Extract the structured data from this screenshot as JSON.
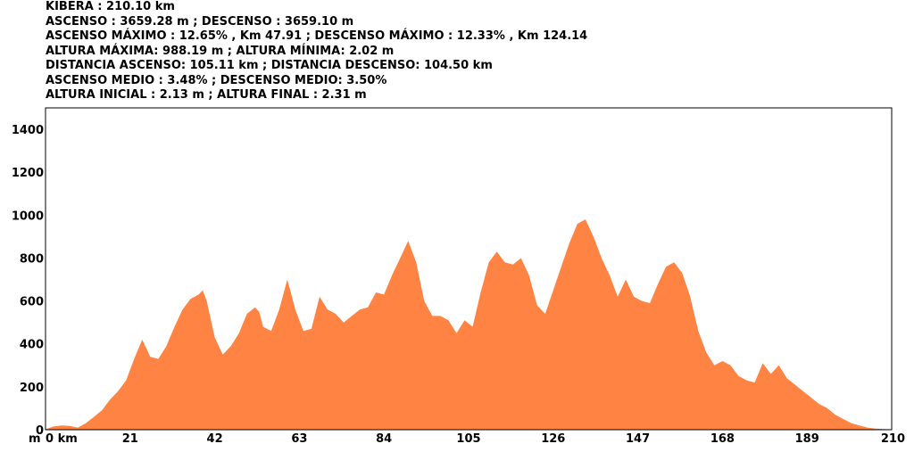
{
  "stats": [
    "KIBERA : 210.10 km",
    "ASCENSO : 3659.28 m ; DESCENSO : 3659.10 m",
    "ASCENSO MÁXIMO : 12.65% , Km 47.91 ; DESCENSO MÁXIMO : 12.33% , Km 124.14",
    "ALTURA MÁXIMA: 988.19 m ; ALTURA MÍNIMA: 2.02 m",
    "DISTANCIA ASCENSO: 105.11 km ; DISTANCIA DESCENSO: 104.50 km",
    "ASCENSO MEDIO : 3.48% ; DESCENSO MEDIO: 3.50%",
    "ALTURA INICIAL : 2.13 m ; ALTURA FINAL : 2.31 m"
  ],
  "chart_data": {
    "type": "area",
    "title": "",
    "xlabel": "km",
    "ylabel": "m",
    "xlim": [
      0,
      210
    ],
    "ylim": [
      0,
      1500
    ],
    "x_ticks": [
      0,
      21,
      42,
      63,
      84,
      105,
      126,
      147,
      168,
      189,
      210
    ],
    "x_tick_labels": [
      "0 km",
      "21",
      "42",
      "63",
      "84",
      "105",
      "126",
      "147",
      "168",
      "189",
      "210"
    ],
    "y_ticks": [
      0,
      200,
      400,
      600,
      800,
      1000,
      1200,
      1400
    ],
    "y_tick_labels": [
      "0",
      "200",
      "400",
      "600",
      "800",
      "1000",
      "1200",
      "1400"
    ],
    "fill_color": "#FF8444",
    "grid": false,
    "series": [
      {
        "x": [
          0,
          2,
          4,
          6,
          8,
          10,
          12,
          14,
          16,
          18,
          20,
          22,
          24,
          26,
          28,
          30,
          32,
          34,
          36,
          38,
          39,
          40,
          42,
          44,
          46,
          48,
          50,
          52,
          53,
          54,
          56,
          58,
          60,
          62,
          64,
          66,
          68,
          70,
          72,
          74,
          76,
          78,
          80,
          82,
          84,
          86,
          88,
          90,
          92,
          94,
          96,
          98,
          100,
          102,
          104,
          106,
          108,
          110,
          112,
          114,
          116,
          118,
          120,
          122,
          124,
          126,
          128,
          130,
          132,
          134,
          136,
          138,
          140,
          142,
          144,
          146,
          148,
          150,
          152,
          154,
          156,
          158,
          160,
          162,
          164,
          166,
          168,
          170,
          172,
          174,
          176,
          178,
          180,
          182,
          184,
          186,
          188,
          190,
          192,
          194,
          196,
          198,
          200,
          202,
          204,
          206,
          208,
          210
        ],
        "y": [
          2,
          15,
          20,
          18,
          10,
          30,
          60,
          90,
          140,
          180,
          230,
          330,
          420,
          340,
          330,
          390,
          480,
          560,
          610,
          630,
          650,
          600,
          430,
          350,
          390,
          450,
          540,
          570,
          550,
          480,
          460,
          560,
          700,
          560,
          460,
          470,
          620,
          560,
          540,
          500,
          530,
          560,
          570,
          640,
          630,
          720,
          800,
          880,
          780,
          600,
          530,
          530,
          510,
          450,
          510,
          480,
          640,
          780,
          830,
          780,
          770,
          800,
          720,
          580,
          540,
          650,
          760,
          870,
          960,
          980,
          900,
          800,
          720,
          620,
          700,
          620,
          600,
          590,
          680,
          760,
          780,
          730,
          620,
          460,
          360,
          300,
          320,
          300,
          250,
          230,
          220,
          310,
          260,
          300,
          240,
          210,
          180,
          150,
          120,
          100,
          70,
          50,
          30,
          20,
          10,
          5,
          3,
          2
        ]
      }
    ]
  }
}
